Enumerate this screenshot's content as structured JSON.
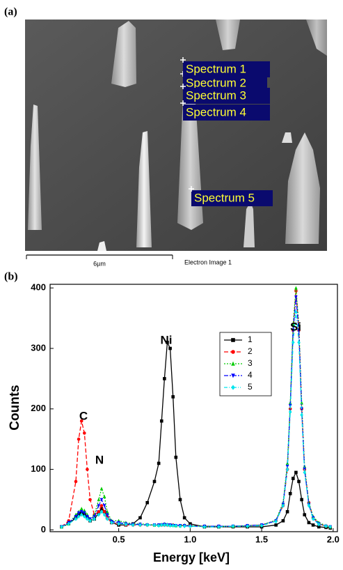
{
  "panel_a": {
    "label": "(a)",
    "spectra": [
      "Spectrum 1",
      "Spectrum 2",
      "Spectrum 3",
      "Spectrum 4",
      "Spectrum 5"
    ],
    "scale_bar": "6µm",
    "image_label": "Electron Image 1"
  },
  "chart_data": {
    "type": "line",
    "panel_label": "(b)",
    "x_label": "Energy [keV]",
    "y_label": "Counts",
    "x": [
      0.1,
      0.15,
      0.2,
      0.22,
      0.24,
      0.26,
      0.28,
      0.3,
      0.33,
      0.36,
      0.38,
      0.4,
      0.42,
      0.45,
      0.5,
      0.55,
      0.6,
      0.65,
      0.7,
      0.75,
      0.78,
      0.8,
      0.82,
      0.84,
      0.86,
      0.88,
      0.9,
      0.93,
      0.96,
      1.0,
      1.1,
      1.2,
      1.3,
      1.4,
      1.5,
      1.6,
      1.65,
      1.68,
      1.7,
      1.72,
      1.74,
      1.76,
      1.78,
      1.8,
      1.83,
      1.86,
      1.9,
      1.95,
      1.98
    ],
    "series": [
      {
        "name": "1",
        "color": "#000000",
        "marker": "square",
        "line_style": "solid",
        "values": [
          5,
          10,
          20,
          25,
          28,
          25,
          20,
          15,
          18,
          28,
          35,
          30,
          20,
          12,
          8,
          8,
          10,
          20,
          45,
          80,
          110,
          180,
          250,
          310,
          300,
          220,
          120,
          50,
          20,
          10,
          5,
          5,
          5,
          5,
          5,
          8,
          15,
          30,
          60,
          85,
          95,
          80,
          50,
          25,
          12,
          8,
          5,
          4,
          3
        ]
      },
      {
        "name": "2",
        "color": "#ff0000",
        "marker": "circle",
        "line_style": "dash",
        "values": [
          5,
          15,
          80,
          150,
          180,
          160,
          100,
          50,
          25,
          30,
          40,
          30,
          20,
          12,
          10,
          8,
          8,
          8,
          8,
          8,
          8,
          8,
          8,
          8,
          8,
          8,
          7,
          7,
          7,
          7,
          6,
          6,
          6,
          7,
          8,
          15,
          40,
          100,
          200,
          330,
          395,
          330,
          200,
          100,
          45,
          20,
          10,
          6,
          5
        ]
      },
      {
        "name": "3",
        "color": "#00cc00",
        "marker": "triangle-up",
        "line_style": "dot",
        "values": [
          5,
          10,
          25,
          30,
          35,
          32,
          25,
          18,
          25,
          50,
          68,
          55,
          30,
          15,
          15,
          12,
          10,
          10,
          9,
          8,
          8,
          9,
          10,
          9,
          8,
          8,
          7,
          7,
          8,
          7,
          6,
          6,
          6,
          7,
          8,
          16,
          45,
          110,
          210,
          340,
          400,
          340,
          210,
          105,
          45,
          22,
          12,
          7,
          5
        ]
      },
      {
        "name": "4",
        "color": "#0000ff",
        "marker": "triangle-down",
        "line_style": "dash-dot",
        "values": [
          5,
          12,
          22,
          28,
          30,
          28,
          22,
          18,
          22,
          40,
          50,
          40,
          25,
          14,
          12,
          10,
          9,
          9,
          8,
          8,
          8,
          8,
          9,
          8,
          8,
          7,
          7,
          7,
          7,
          6,
          6,
          6,
          6,
          7,
          8,
          15,
          42,
          105,
          205,
          330,
          385,
          330,
          200,
          100,
          42,
          20,
          10,
          6,
          5
        ]
      },
      {
        "name": "5",
        "color": "#00e5ee",
        "marker": "diamond",
        "line_style": "dash-dot-dot",
        "values": [
          5,
          10,
          18,
          22,
          25,
          22,
          18,
          15,
          18,
          25,
          30,
          25,
          18,
          12,
          10,
          9,
          8,
          8,
          8,
          8,
          7,
          8,
          8,
          8,
          7,
          7,
          7,
          6,
          6,
          6,
          5,
          5,
          6,
          6,
          7,
          14,
          40,
          100,
          195,
          310,
          360,
          310,
          190,
          95,
          40,
          18,
          9,
          6,
          5
        ]
      }
    ],
    "xlim": [
      0.02,
      2.03
    ],
    "ylim": [
      -3,
      406
    ],
    "xticks": [
      0.5,
      {
        "value": 1,
        "label": "1.0"
      },
      1.5,
      {
        "value": 2,
        "label": "2.0"
      }
    ],
    "yticks": [
      0,
      100,
      200,
      300,
      400
    ],
    "annotations": [
      "C",
      "N",
      "Ni",
      "Si"
    ],
    "legend_position": "upper right"
  }
}
